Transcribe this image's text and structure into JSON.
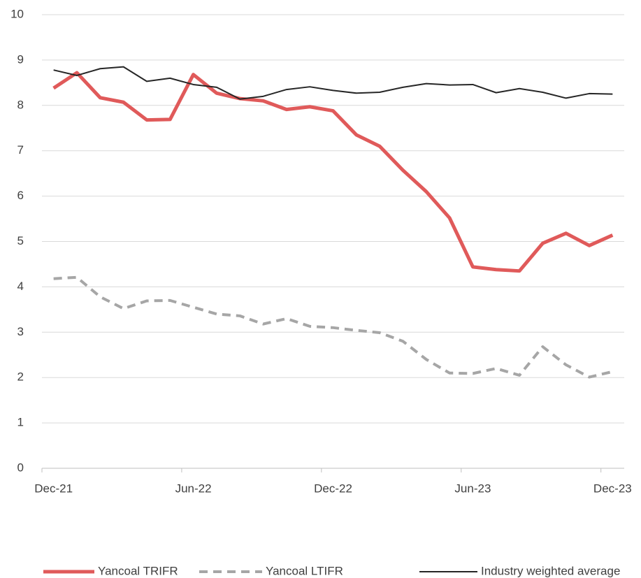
{
  "chart_data": {
    "type": "line",
    "categories": [
      "Dec-21",
      null,
      null,
      null,
      null,
      null,
      "Jun-22",
      null,
      null,
      null,
      null,
      null,
      "Dec-22",
      null,
      null,
      null,
      null,
      null,
      "Jun-23",
      null,
      null,
      null,
      null,
      null,
      "Dec-23"
    ],
    "series": [
      {
        "name": "Yancoal TRIFR",
        "color": "#e05a5a",
        "style": "solid",
        "width": 5,
        "values": [
          8.38,
          8.72,
          8.17,
          8.07,
          7.68,
          7.69,
          8.68,
          8.27,
          8.15,
          8.1,
          7.91,
          7.97,
          7.88,
          7.35,
          7.1,
          6.57,
          6.1,
          5.52,
          4.44,
          4.38,
          4.35,
          4.96,
          5.18,
          4.91,
          5.14
        ]
      },
      {
        "name": "Yancoal LTIFR",
        "color": "#a6a6a6",
        "style": "dashed",
        "width": 4,
        "values": [
          4.18,
          4.21,
          3.78,
          3.52,
          3.69,
          3.7,
          3.55,
          3.4,
          3.36,
          3.18,
          3.3,
          3.13,
          3.1,
          3.04,
          2.99,
          2.8,
          2.4,
          2.1,
          2.09,
          2.2,
          2.05,
          2.68,
          2.28,
          2.01,
          2.13
        ]
      },
      {
        "name": "Industry weighted average",
        "color": "#262626",
        "style": "solid",
        "width": 2,
        "values": [
          8.78,
          8.66,
          8.81,
          8.85,
          8.53,
          8.6,
          8.46,
          8.4,
          8.14,
          8.2,
          8.35,
          8.41,
          8.33,
          8.27,
          8.29,
          8.4,
          8.48,
          8.45,
          8.46,
          8.28,
          8.37,
          8.29,
          8.16,
          8.26,
          8.25
        ]
      }
    ],
    "ylim": [
      0,
      10
    ],
    "yticks": [
      0,
      1,
      2,
      3,
      4,
      5,
      6,
      7,
      8,
      9,
      10
    ],
    "grid": true,
    "legend": "bottom"
  }
}
